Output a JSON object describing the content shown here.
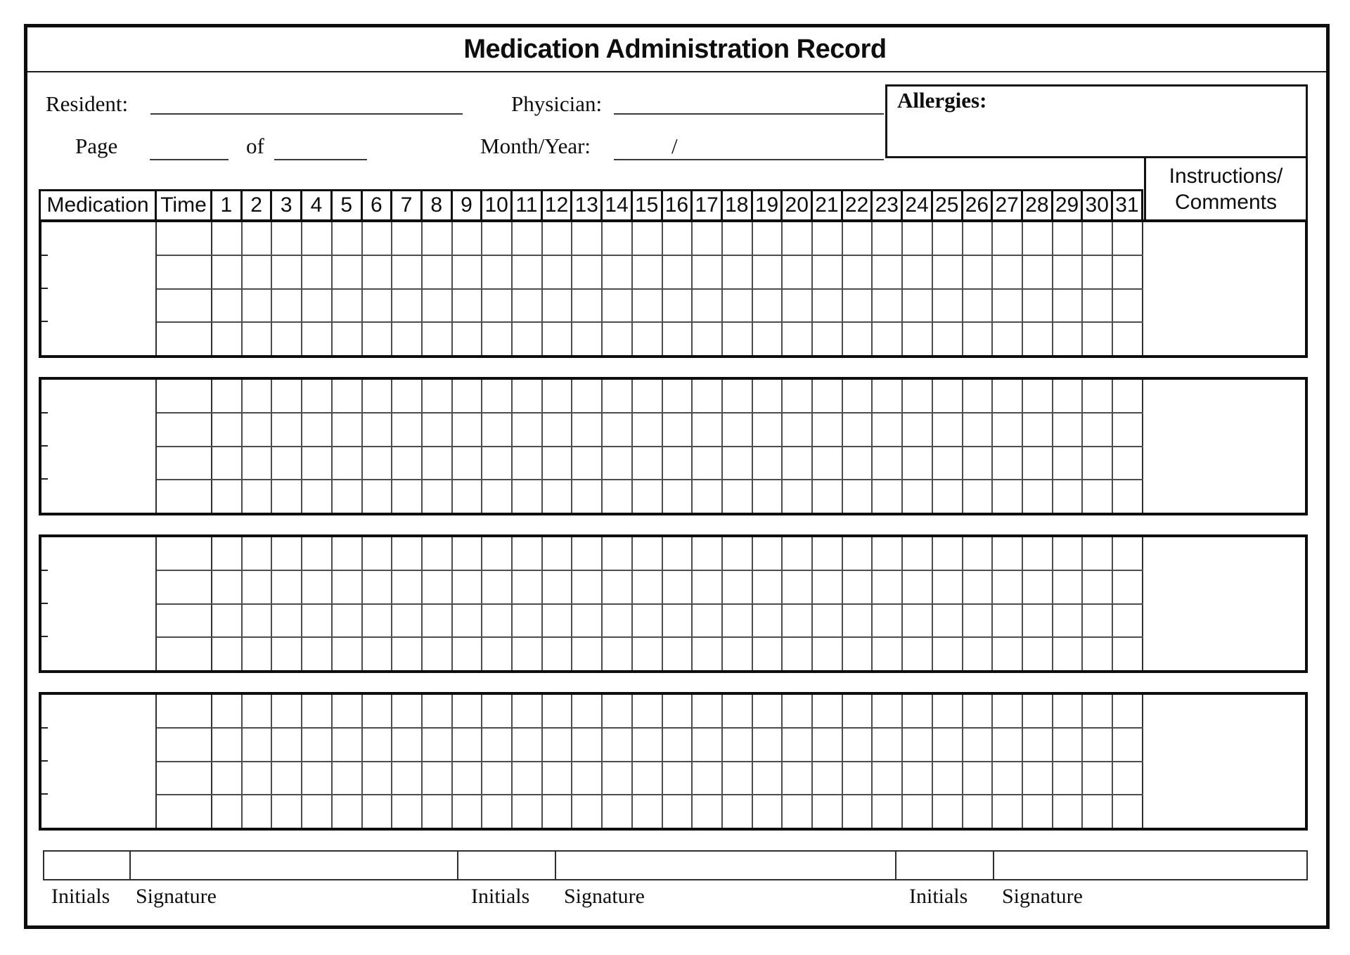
{
  "title": "Medication Administration Record",
  "header_fields": {
    "resident_label": "Resident:",
    "physician_label": "Physician:",
    "page_label": "Page",
    "of_label": "of",
    "month_year_label": "Month/Year:",
    "month_year_separator": "/",
    "allergies_label": "Allergies:"
  },
  "table": {
    "medication_header": "Medication",
    "time_header": "Time",
    "day_headers": [
      "1",
      "2",
      "3",
      "4",
      "5",
      "6",
      "7",
      "8",
      "9",
      "10",
      "11",
      "12",
      "13",
      "14",
      "15",
      "16",
      "17",
      "18",
      "19",
      "20",
      "21",
      "22",
      "23",
      "24",
      "25",
      "26",
      "27",
      "28",
      "29",
      "30",
      "31"
    ],
    "instructions_header_line1": "Instructions/",
    "instructions_header_line2": "Comments",
    "block_count": 4,
    "rows_per_block": 4
  },
  "footer": {
    "sections": [
      {
        "initials_label": "Initials",
        "signature_label": "Signature"
      },
      {
        "initials_label": "Initials",
        "signature_label": "Signature"
      },
      {
        "initials_label": "Initials",
        "signature_label": "Signature"
      }
    ]
  },
  "colors": {
    "ink": "#0e0e0e",
    "grid_line": "#4d4d4d",
    "underline": "#3a3a3a"
  }
}
